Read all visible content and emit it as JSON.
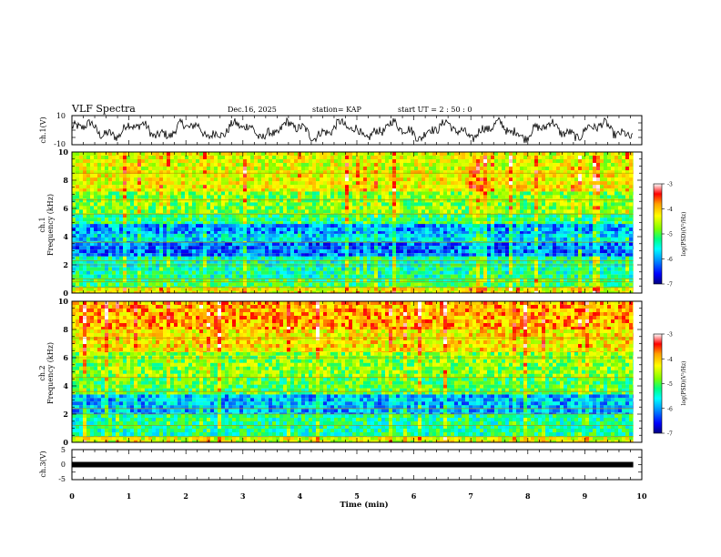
{
  "header": {
    "title": "VLF Spectra",
    "date": "Dec.16, 2025",
    "station": "station= KAP",
    "start_ut": "start  UT =  2 : 50 : 0"
  },
  "chart_data": [
    {
      "type": "line",
      "name": "ch1-waveform",
      "ylabel": "ch.1(V)",
      "ylim": [
        -10,
        10
      ],
      "yticks": [
        "10",
        "-10"
      ],
      "x_range_min": [
        0,
        9.85
      ],
      "description_values": "noisy waveform oscillating roughly between -8 and +8 V"
    },
    {
      "type": "heatmap",
      "name": "ch1-spectrogram",
      "ylabel_channel": "ch.1",
      "ylabel": "Frequency (kHz)",
      "ylim": [
        0,
        10
      ],
      "yticks": [
        "0",
        "2",
        "4",
        "6",
        "8",
        "10"
      ],
      "colorbar": {
        "label": "log(PSD)(V²/Hz)",
        "range": [
          -7,
          -3
        ],
        "ticks": [
          "-3",
          "-4",
          "-5",
          "-6",
          "-7"
        ]
      },
      "band_log_psd": [
        {
          "f": [
            0.0,
            0.4
          ],
          "v": -4.3
        },
        {
          "f": [
            0.4,
            1.0
          ],
          "v": -5.1
        },
        {
          "f": [
            1.0,
            2.6
          ],
          "v": -5.4
        },
        {
          "f": [
            2.6,
            3.6
          ],
          "v": -6.2
        },
        {
          "f": [
            3.6,
            4.2
          ],
          "v": -5.7
        },
        {
          "f": [
            4.2,
            4.9
          ],
          "v": -6.0
        },
        {
          "f": [
            4.9,
            5.6
          ],
          "v": -5.2
        },
        {
          "f": [
            5.6,
            7.2
          ],
          "v": -4.8
        },
        {
          "f": [
            7.2,
            8.7
          ],
          "v": -4.3
        },
        {
          "f": [
            8.7,
            10.0
          ],
          "v": -4.4
        }
      ]
    },
    {
      "type": "heatmap",
      "name": "ch2-spectrogram",
      "ylabel_channel": "ch.2",
      "ylabel": "Frequency (kHz)",
      "ylim": [
        0,
        10
      ],
      "yticks": [
        "0",
        "2",
        "4",
        "6",
        "8",
        "10"
      ],
      "colorbar": {
        "label": "log(PSD)(V²/Hz)",
        "range": [
          -7,
          -3
        ],
        "ticks": [
          "-3",
          "-4",
          "-5",
          "-6",
          "-7"
        ]
      },
      "band_log_psd": [
        {
          "f": [
            0.0,
            0.4
          ],
          "v": -4.4
        },
        {
          "f": [
            0.4,
            2.0
          ],
          "v": -5.3
        },
        {
          "f": [
            2.0,
            3.4
          ],
          "v": -5.9
        },
        {
          "f": [
            3.4,
            4.6
          ],
          "v": -5.0
        },
        {
          "f": [
            4.6,
            6.4
          ],
          "v": -4.8
        },
        {
          "f": [
            6.4,
            8.0
          ],
          "v": -4.2
        },
        {
          "f": [
            8.0,
            10.0
          ],
          "v": -3.9
        }
      ]
    },
    {
      "type": "line",
      "name": "ch3-signal",
      "ylabel": "ch.3(V)",
      "ylim": [
        -5,
        5
      ],
      "yticks": [
        "5",
        "0",
        "-5"
      ],
      "constant_value": 0
    }
  ],
  "xaxis": {
    "label": "Time (min)",
    "xlim": [
      0,
      10
    ],
    "ticks": [
      "0",
      "1",
      "2",
      "3",
      "4",
      "5",
      "6",
      "7",
      "8",
      "9",
      "10"
    ],
    "data_end_min": 9.85
  },
  "colors": {
    "axis": "#000000",
    "colormap": [
      "#000080",
      "#0000ff",
      "#00a0ff",
      "#00ffff",
      "#00ff80",
      "#80ff00",
      "#ffff00",
      "#ffa000",
      "#ff0000",
      "#ffffff"
    ]
  }
}
